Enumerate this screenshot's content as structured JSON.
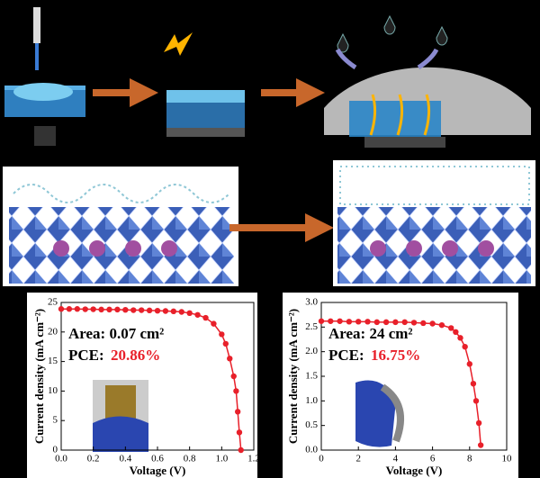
{
  "chart_data": [
    {
      "type": "line",
      "x_label": "Voltage (V)",
      "y_label": "Current density (mA cm⁻²)",
      "area_label": "Area: 0.07 cm²",
      "pce_label": "PCE:",
      "pce_value": "20.86%",
      "xlim": [
        0,
        1.2
      ],
      "xticks": [
        {
          "value": 0,
          "label": "0.0"
        },
        0.2,
        0.4,
        0.6,
        0.8,
        {
          "value": 1,
          "label": "1.0"
        },
        1.2
      ],
      "ylim": [
        0,
        25
      ],
      "yticks": [
        0,
        5,
        10,
        15,
        20,
        25
      ],
      "series": [
        {
          "color": "#e8202a",
          "x": [
            0,
            0.05,
            0.1,
            0.15,
            0.2,
            0.25,
            0.3,
            0.35,
            0.4,
            0.45,
            0.5,
            0.55,
            0.6,
            0.65,
            0.7,
            0.75,
            0.8,
            0.85,
            0.9,
            0.95,
            1.0,
            1.025,
            1.05,
            1.075,
            1.09,
            1.1,
            1.11,
            1.12
          ],
          "values": [
            23.9,
            23.9,
            23.9,
            23.85,
            23.85,
            23.8,
            23.8,
            23.8,
            23.75,
            23.7,
            23.7,
            23.65,
            23.6,
            23.55,
            23.5,
            23.4,
            23.2,
            22.9,
            22.4,
            21.4,
            19.6,
            18,
            15.5,
            12.5,
            10,
            6.5,
            3,
            0
          ]
        }
      ]
    },
    {
      "type": "line",
      "x_label": "Voltage (V)",
      "y_label": "Current density (mA cm⁻²)",
      "area_label": "Area: 24 cm²",
      "pce_label": "PCE:",
      "pce_value": "16.75%",
      "xlim": [
        0,
        10
      ],
      "xticks": [
        0,
        2,
        4,
        6,
        8,
        10
      ],
      "ylim": [
        0,
        3
      ],
      "yticks": [
        {
          "value": 0,
          "label": "0.0"
        },
        0.5,
        {
          "value": 1,
          "label": "1.0"
        },
        1.5,
        {
          "value": 2,
          "label": "2.0"
        },
        2.5,
        {
          "value": 3,
          "label": "3.0"
        }
      ],
      "series": [
        {
          "color": "#e8202a",
          "x": [
            0,
            0.5,
            1,
            1.5,
            2,
            2.5,
            3,
            3.5,
            4,
            4.5,
            5,
            5.5,
            6,
            6.5,
            7,
            7.25,
            7.5,
            7.75,
            8,
            8.2,
            8.35,
            8.5,
            8.6
          ],
          "values": [
            2.62,
            2.62,
            2.62,
            2.61,
            2.61,
            2.61,
            2.6,
            2.6,
            2.6,
            2.6,
            2.59,
            2.58,
            2.57,
            2.54,
            2.48,
            2.4,
            2.28,
            2.1,
            1.75,
            1.35,
            1.0,
            0.55,
            0.1
          ]
        }
      ]
    }
  ]
}
